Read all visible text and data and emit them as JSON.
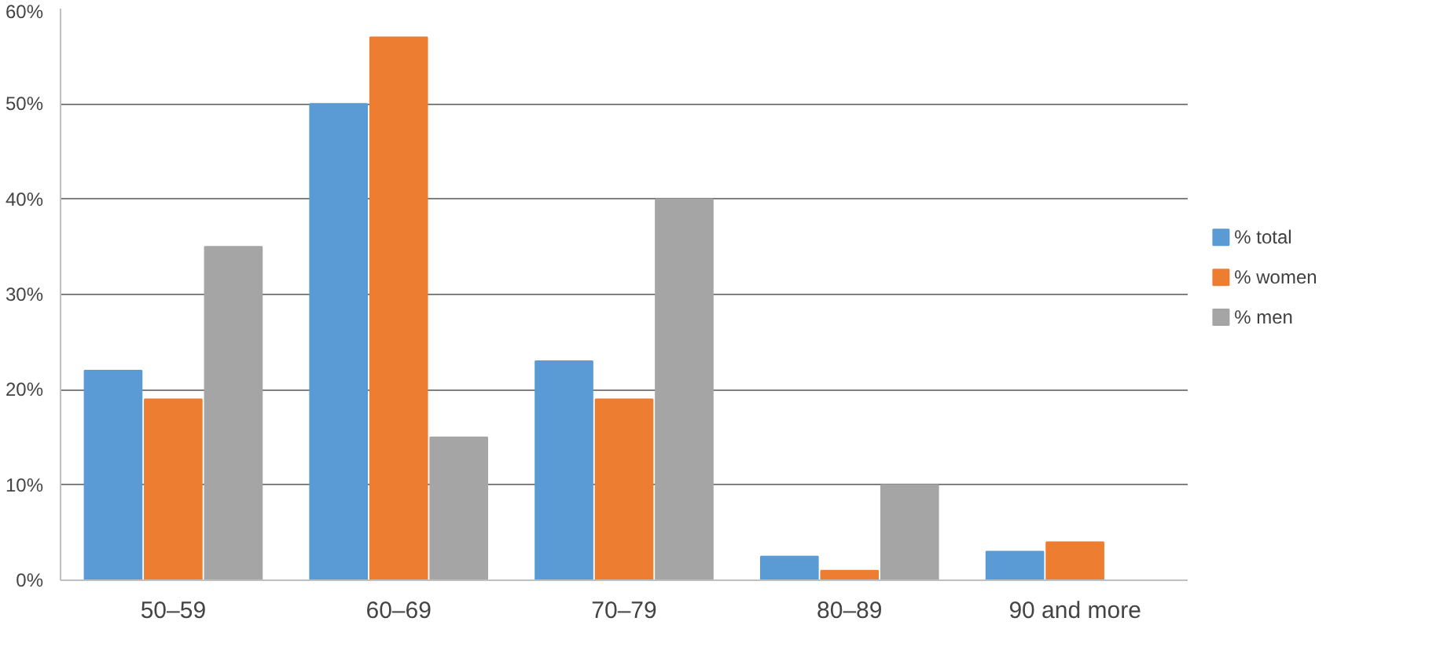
{
  "chart_data": {
    "type": "bar",
    "categories": [
      "50–59",
      "60–69",
      "70–79",
      "80–89",
      "90 and more"
    ],
    "series": [
      {
        "name": "% total",
        "color": "#5b9bd5",
        "values": [
          22,
          50,
          23,
          2.5,
          3
        ]
      },
      {
        "name": "% women",
        "color": "#ed7d31",
        "values": [
          19,
          57,
          19,
          1,
          4
        ]
      },
      {
        "name": "% men",
        "color": "#a5a5a5",
        "values": [
          35,
          15,
          40,
          10,
          0
        ]
      }
    ],
    "ylim": [
      0,
      60
    ],
    "yticks": [
      {
        "value": 0,
        "label": "0%"
      },
      {
        "value": 10,
        "label": "10%"
      },
      {
        "value": 20,
        "label": "20%"
      },
      {
        "value": 30,
        "label": "30%"
      },
      {
        "value": 40,
        "label": "40%"
      },
      {
        "value": 50,
        "label": "50%"
      },
      {
        "value": 60,
        "label": "60%"
      }
    ],
    "grid": "y",
    "legend": "right"
  }
}
